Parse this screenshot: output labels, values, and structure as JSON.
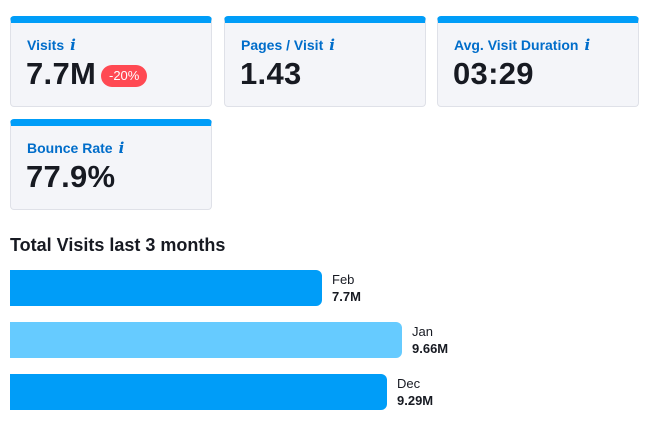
{
  "metrics": {
    "visits": {
      "label": "Visits",
      "value": "7.7M",
      "change": "-20%"
    },
    "pages_per_visit": {
      "label": "Pages / Visit",
      "value": "1.43"
    },
    "avg_visit_duration": {
      "label": "Avg. Visit Duration",
      "value": "03:29"
    },
    "bounce_rate": {
      "label": "Bounce Rate",
      "value": "77.9%"
    }
  },
  "info_icon_glyph": "i",
  "colors": {
    "accent": "#009df8",
    "bar_current": "#009df8",
    "bar_previous": "#66cbff",
    "badge_negative": "#ff4953",
    "label_blue": "#006dca"
  },
  "total_visits": {
    "title": "Total Visits last 3 months",
    "bars": [
      {
        "month": "Feb",
        "value_label": "7.7M",
        "value": 7.7
      },
      {
        "month": "Jan",
        "value_label": "9.66M",
        "value": 9.66
      },
      {
        "month": "Dec",
        "value_label": "9.29M",
        "value": 9.29
      }
    ]
  }
}
